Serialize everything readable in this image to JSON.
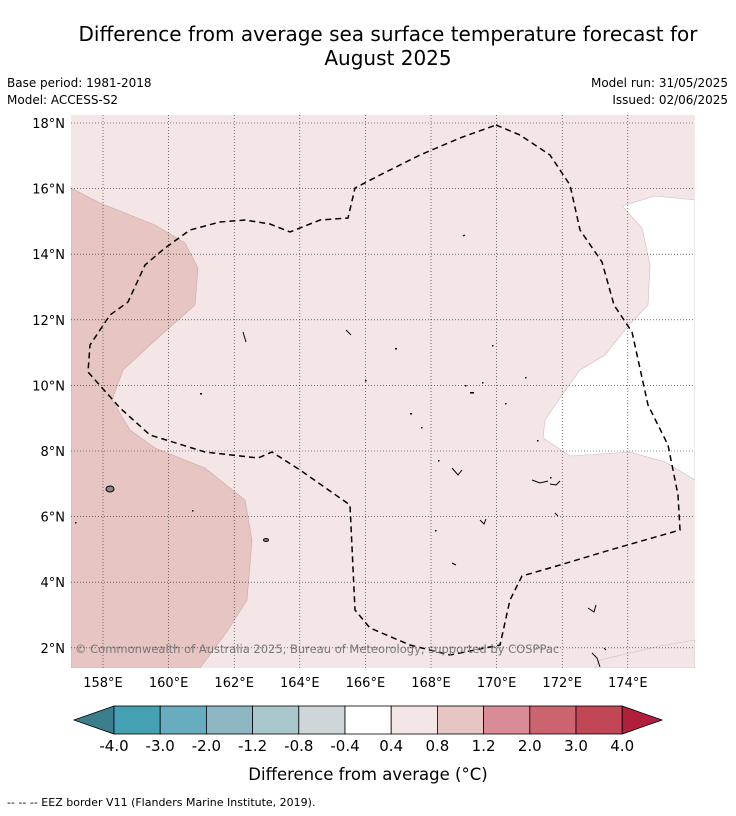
{
  "title_line1": "Difference from average sea surface temperature forecast for",
  "title_line2": "August 2025",
  "base_period": "Base period: 1981-2018",
  "model": "Model: ACCESS-S2",
  "model_run": "Model run: 31/05/2025",
  "issued": "Issued: 02/06/2025",
  "copyright": "© Commonwealth of Australia 2025, Bureau of Meteorology, supported by COSPPac",
  "lat_labels": [
    "18°N",
    "16°N",
    "14°N",
    "12°N",
    "10°N",
    "8°N",
    "6°N",
    "4°N",
    "2°N"
  ],
  "lon_labels": [
    "158°E",
    "160°E",
    "162°E",
    "164°E",
    "166°E",
    "168°E",
    "170°E",
    "172°E",
    "174°E"
  ],
  "colorbar": {
    "label": "Difference from average (°C)",
    "ticks": [
      "-4.0",
      "-3.0",
      "-2.0",
      "-1.2",
      "-0.8",
      "-0.4",
      "0.4",
      "0.8",
      "1.2",
      "2.0",
      "3.0",
      "4.0"
    ],
    "colors": [
      "#44a1b3",
      "#68adbf",
      "#8db7c3",
      "#a8c6cb",
      "#cfd6d9",
      "#ffffff",
      "#f4e6e6",
      "#e7c5c2",
      "#d98c95",
      "#cc6470",
      "#c24756"
    ],
    "under_color": "#3b7f8c",
    "over_color": "#b01f3c"
  },
  "footer": "--  --  -- EEZ border V11 (Flanders Marine Institute, 2019)."
}
